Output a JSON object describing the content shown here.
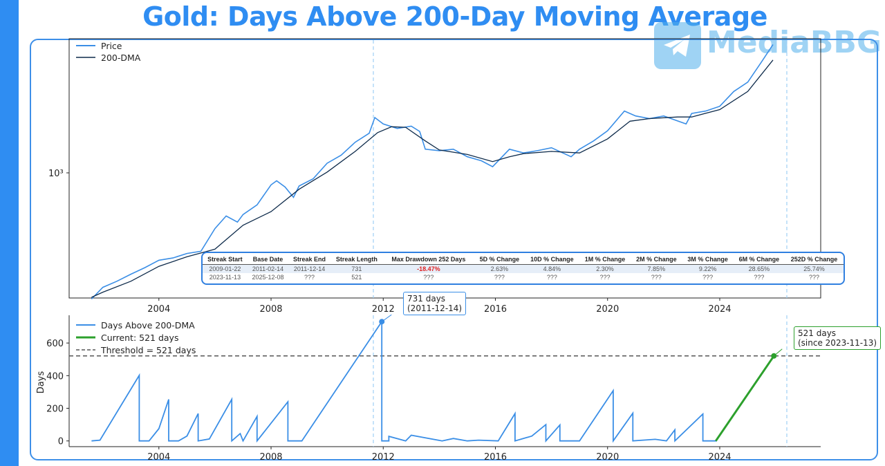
{
  "title": "Gold: Days Above 200-Day Moving Average",
  "watermark": "MediaBBG",
  "colors": {
    "price": "#3a8ee6",
    "dma": "#0d2a4a",
    "days": "#3a8ee6",
    "current": "#2ca02c",
    "threshold": "#555555",
    "accent": "#2f8df2",
    "negative": "#e02020"
  },
  "chart_data": [
    {
      "type": "line",
      "title": "",
      "xlabel": "",
      "ylabel": "",
      "yscale": "log",
      "xlim": [
        2000.8,
        2027.6
      ],
      "ylim": [
        268,
        4200
      ],
      "x_ticks": [
        "2004",
        "2008",
        "2012",
        "2016",
        "2020",
        "2024"
      ],
      "y_tick_label": "10³",
      "legend": [
        "Price",
        "200-DMA"
      ],
      "legend_position": "top-left",
      "series": [
        {
          "name": "Price",
          "x": [
            2001.6,
            2002.0,
            2002.5,
            2003.0,
            2003.5,
            2004.0,
            2004.5,
            2005.0,
            2005.5,
            2006.0,
            2006.4,
            2006.8,
            2007.0,
            2007.5,
            2008.0,
            2008.2,
            2008.5,
            2008.8,
            2009.0,
            2009.5,
            2010.0,
            2010.5,
            2011.0,
            2011.5,
            2011.7,
            2012.0,
            2012.5,
            2013.0,
            2013.3,
            2013.5,
            2014.0,
            2014.5,
            2015.0,
            2015.5,
            2015.9,
            2016.5,
            2017.0,
            2017.5,
            2018.0,
            2018.7,
            2019.0,
            2019.5,
            2020.0,
            2020.6,
            2021.0,
            2021.5,
            2022.0,
            2022.8,
            2023.0,
            2023.5,
            2024.0,
            2024.5,
            2025.0,
            2025.5,
            2025.9
          ],
          "values": [
            265,
            300,
            320,
            345,
            370,
            400,
            410,
            430,
            440,
            560,
            640,
            600,
            650,
            720,
            890,
            930,
            870,
            780,
            880,
            950,
            1120,
            1220,
            1400,
            1540,
            1820,
            1700,
            1620,
            1660,
            1570,
            1300,
            1280,
            1300,
            1200,
            1150,
            1080,
            1300,
            1250,
            1280,
            1320,
            1200,
            1300,
            1420,
            1580,
            1950,
            1850,
            1800,
            1850,
            1700,
            1900,
            1950,
            2050,
            2400,
            2650,
            3300,
            3950
          ]
        },
        {
          "name": "200-DMA",
          "x": [
            2001.6,
            2002.0,
            2003.0,
            2004.0,
            2005.0,
            2006.0,
            2007.0,
            2008.0,
            2009.0,
            2010.0,
            2011.0,
            2011.8,
            2012.3,
            2012.8,
            2013.5,
            2014.0,
            2015.0,
            2015.9,
            2016.5,
            2017.0,
            2018.0,
            2019.0,
            2020.0,
            2020.8,
            2021.5,
            2022.5,
            2023.0,
            2024.0,
            2025.0,
            2025.9
          ],
          "values": [
            270,
            285,
            320,
            375,
            415,
            450,
            580,
            670,
            850,
            1020,
            1270,
            1550,
            1650,
            1640,
            1420,
            1290,
            1230,
            1140,
            1200,
            1240,
            1270,
            1250,
            1450,
            1750,
            1800,
            1830,
            1830,
            1980,
            2400,
            3350
          ]
        }
      ]
    },
    {
      "type": "line",
      "title": "",
      "xlabel": "",
      "ylabel": "Days",
      "xlim": [
        2000.8,
        2027.6
      ],
      "ylim": [
        -35,
        770
      ],
      "x_ticks": [
        "2004",
        "2008",
        "2012",
        "2016",
        "2020",
        "2024"
      ],
      "y_ticks": [
        0,
        200,
        400,
        600
      ],
      "legend": [
        "Days Above 200-DMA",
        "Current: 521 days",
        "Threshold = 521 days"
      ],
      "legend_position": "top-left",
      "series": [
        {
          "name": "Days Above 200-DMA",
          "x": [
            2001.6,
            2001.9,
            2003.3,
            2003.3,
            2003.65,
            2004.0,
            2004.35,
            2004.35,
            2004.7,
            2005.0,
            2005.4,
            2005.4,
            2005.8,
            2006.6,
            2006.6,
            2006.9,
            2007.0,
            2007.5,
            2007.5,
            2008.6,
            2008.6,
            2009.1,
            2011.95,
            2011.95,
            2012.2,
            2012.2,
            2012.8,
            2013.0,
            2014.1,
            2014.5,
            2015.0,
            2015.4,
            2016.1,
            2016.7,
            2016.7,
            2017.3,
            2017.8,
            2017.8,
            2018.3,
            2018.3,
            2019.0,
            2020.2,
            2020.2,
            2020.9,
            2020.9,
            2021.7,
            2022.1,
            2022.4,
            2022.4,
            2023.4,
            2023.4,
            2023.9
          ],
          "values": [
            0,
            5,
            402,
            0,
            0,
            75,
            255,
            0,
            0,
            30,
            168,
            0,
            12,
            255,
            0,
            45,
            0,
            150,
            0,
            240,
            0,
            0,
            731,
            0,
            0,
            28,
            0,
            35,
            0,
            15,
            0,
            5,
            0,
            168,
            0,
            30,
            100,
            0,
            98,
            0,
            0,
            308,
            0,
            170,
            0,
            10,
            0,
            68,
            0,
            165,
            0,
            0
          ]
        },
        {
          "name": "Current: 521 days",
          "x": [
            2023.86,
            2025.93
          ],
          "values": [
            0,
            521
          ]
        },
        {
          "name": "Threshold = 521 days",
          "x": [
            2000.8,
            2027.6
          ],
          "values": [
            521,
            521
          ]
        }
      ],
      "annotations": [
        {
          "text_line1": "731 days",
          "text_line2": "(2011-12-14)",
          "x": 2011.95,
          "y": 731
        },
        {
          "text_line1": "521 days",
          "text_line2": "(since 2023-11-13)",
          "x": 2025.93,
          "y": 521
        }
      ]
    }
  ],
  "table": {
    "headers": [
      "Streak Start",
      "Base Date",
      "Streak End",
      "Streak Length",
      "Max Drawdown 252 Days",
      "5D % Change",
      "10D % Change",
      "1M % Change",
      "2M % Change",
      "3M % Change",
      "6M % Change",
      "252D % Change"
    ],
    "rows": [
      [
        "2009-01-22",
        "2011-02-14",
        "2011-12-14",
        "731",
        "-18.47%",
        "2.63%",
        "4.84%",
        "2.30%",
        "7.85%",
        "9.22%",
        "28.65%",
        "25.74%"
      ],
      [
        "2023-11-13",
        "2025-12-08",
        "???",
        "521",
        "???",
        "???",
        "???",
        "???",
        "???",
        "???",
        "???",
        "???"
      ]
    ]
  }
}
